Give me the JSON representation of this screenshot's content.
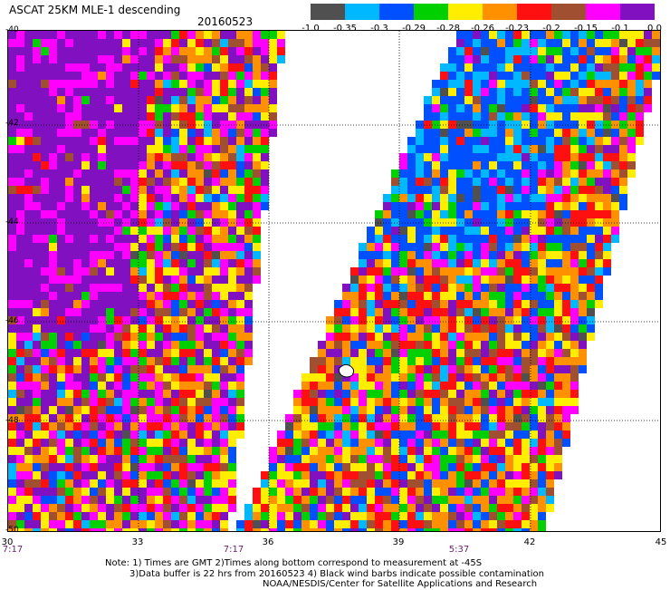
{
  "header": {
    "title": "ASCAT 25KM MLE-1 descending",
    "date": "20160523"
  },
  "legend": {
    "labels": [
      "-1.0",
      "-0.35",
      "-0.3",
      "-0.29",
      "-0.28",
      "-0.26",
      "-0.23",
      "-0.2",
      "-0.15",
      "-0.1",
      "0.0"
    ],
    "colors": [
      "#505050",
      "#00b8ff",
      "#0050ff",
      "#00d000",
      "#ffee00",
      "#ff9000",
      "#ff1010",
      "#a05030",
      "#ff00ff",
      "#8010c0"
    ]
  },
  "map": {
    "lat_labels": [
      "-40",
      "-42",
      "-44",
      "-46",
      "-48",
      "-50"
    ],
    "lon_labels": [
      "30",
      "33",
      "36",
      "39",
      "42",
      "45"
    ],
    "time_labels": [
      "7:17",
      "7:17",
      "5:37"
    ]
  },
  "notes": {
    "line1": "Note: 1) Times are GMT 2)Times along bottom correspond to measurement at -45S",
    "line2": "3)Data buffer is 22 hrs from 20160523 4) Black wind barbs indicate possible contamination",
    "line3": "NOAA/NESDIS/Center for Satellite Applications and Research"
  }
}
